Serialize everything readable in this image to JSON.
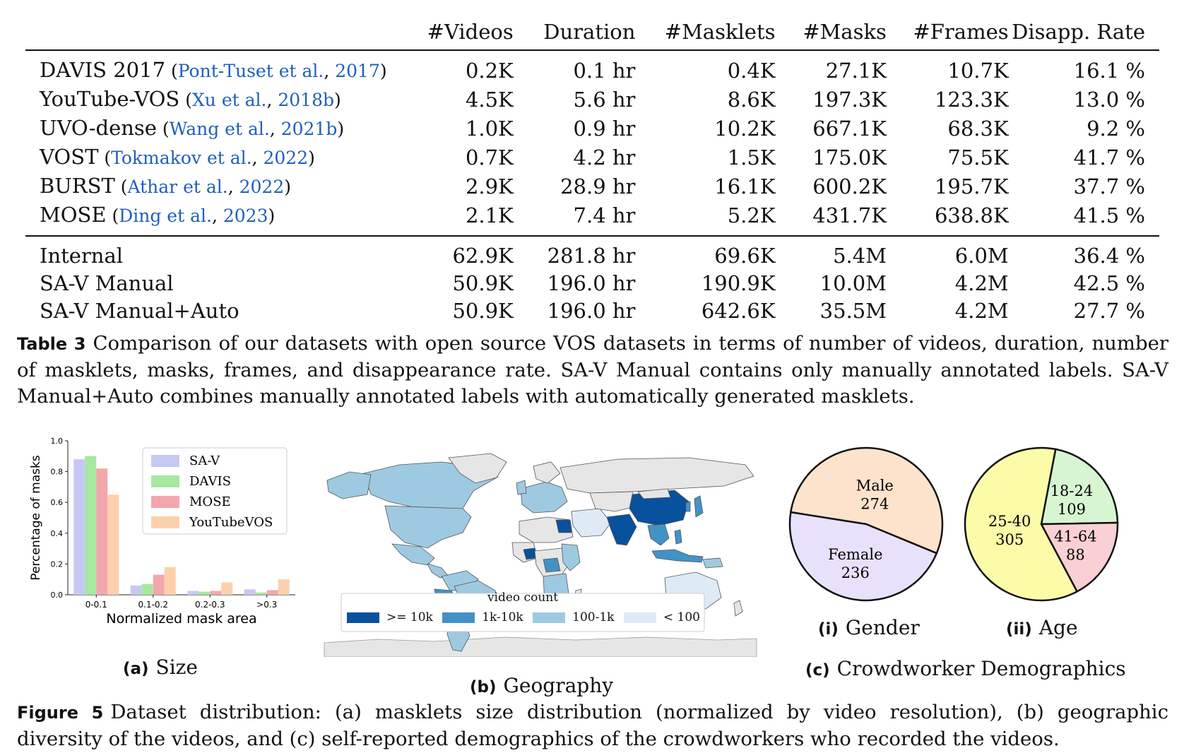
{
  "table3": {
    "headers": [
      "",
      "#Videos",
      "Duration",
      "#Masklets",
      "#Masks",
      "#Frames",
      "Disapp. Rate"
    ],
    "open_source_rows": [
      {
        "name": "DAVIS 2017",
        "cite_author": "Pont-Tuset et al.",
        "cite_year": "2017",
        "videos": "0.2K",
        "duration": "0.1 hr",
        "masklets": "0.4K",
        "masks": "27.1K",
        "frames": "10.7K",
        "disapp": "16.1 %"
      },
      {
        "name": "YouTube-VOS",
        "cite_author": "Xu et al.",
        "cite_year": "2018b",
        "videos": "4.5K",
        "duration": "5.6 hr",
        "masklets": "8.6K",
        "masks": "197.3K",
        "frames": "123.3K",
        "disapp": "13.0 %"
      },
      {
        "name": "UVO-dense",
        "cite_author": "Wang et al.",
        "cite_year": "2021b",
        "videos": "1.0K",
        "duration": "0.9 hr",
        "masklets": "10.2K",
        "masks": "667.1K",
        "frames": "68.3K",
        "disapp": "9.2 %"
      },
      {
        "name": "VOST",
        "cite_author": "Tokmakov et al.",
        "cite_year": "2022",
        "videos": "0.7K",
        "duration": "4.2 hr",
        "masklets": "1.5K",
        "masks": "175.0K",
        "frames": "75.5K",
        "disapp": "41.7 %"
      },
      {
        "name": "BURST",
        "cite_author": "Athar et al.",
        "cite_year": "2022",
        "videos": "2.9K",
        "duration": "28.9 hr",
        "masklets": "16.1K",
        "masks": "600.2K",
        "frames": "195.7K",
        "disapp": "37.7 %"
      },
      {
        "name": "MOSE",
        "cite_author": "Ding et al.",
        "cite_year": "2023",
        "videos": "2.1K",
        "duration": "7.4 hr",
        "masklets": "5.2K",
        "masks": "431.7K",
        "frames": "638.8K",
        "disapp": "41.5 %"
      }
    ],
    "ours_rows": [
      {
        "name": "Internal",
        "videos": "62.9K",
        "duration": "281.8 hr",
        "masklets": "69.6K",
        "masks": "5.4M",
        "frames": "6.0M",
        "disapp": "36.4 %"
      },
      {
        "name": "SA-V Manual",
        "videos": "50.9K",
        "duration": "196.0 hr",
        "masklets": "190.9K",
        "masks": "10.0M",
        "frames": "4.2M",
        "disapp": "42.5 %"
      },
      {
        "name": "SA-V Manual+Auto",
        "videos": "50.9K",
        "duration": "196.0 hr",
        "masklets": "642.6K",
        "masks": "35.5M",
        "frames": "4.2M",
        "disapp": "27.7 %"
      }
    ],
    "caption_label": "Table 3",
    "caption_text": "Comparison of our datasets with open source VOS datasets in terms of number of videos, duration, number of masklets, masks, frames, and disappearance rate. SA-V Manual contains only manually annotated labels. SA-V Manual+Auto combines manually annotated labels with automatically generated masklets."
  },
  "figure5": {
    "caption_label": "Figure 5",
    "caption_text": "Dataset distribution: (a) masklets size distribution (normalized by video resolution), (b) geographic diversity of the videos, and (c) self-reported demographics of the crowdworkers who recorded the videos.",
    "panel_a_label": "(a)",
    "panel_a_title": "Size",
    "panel_b_label": "(b)",
    "panel_b_title": "Geography",
    "panel_c_label": "(c)",
    "panel_c_title": "Crowdworker Demographics",
    "map_legend": {
      "title": "video count",
      "items": [
        {
          "label": ">= 10k",
          "color": "#08519c"
        },
        {
          "label": "1k-10k",
          "color": "#4292c6"
        },
        {
          "label": "100-1k",
          "color": "#9ecae1"
        },
        {
          "label": "< 100",
          "color": "#deebf7"
        }
      ],
      "no_data_color": "#e6e6e6"
    }
  },
  "chart_data": [
    {
      "type": "bar",
      "title": "",
      "xlabel": "Normalized mask area",
      "ylabel": "Percentage of masks",
      "ylim": [
        0,
        1.0
      ],
      "yticks": [
        "0.0",
        "0.2",
        "0.4",
        "0.6",
        "0.8",
        "1.0"
      ],
      "categories": [
        "0-0.1",
        "0.1-0.2",
        "0.2-0.3",
        ">0.3"
      ],
      "legend_position": "top-right",
      "series": [
        {
          "name": "SA-V",
          "color": "#c6c8f4",
          "values": [
            0.88,
            0.06,
            0.025,
            0.035
          ]
        },
        {
          "name": "DAVIS",
          "color": "#a6e8a0",
          "values": [
            0.9,
            0.07,
            0.02,
            0.015
          ]
        },
        {
          "name": "MOSE",
          "color": "#f4a6ad",
          "values": [
            0.82,
            0.13,
            0.025,
            0.03
          ]
        },
        {
          "name": "YouTubeVOS",
          "color": "#fdd0ad",
          "values": [
            0.65,
            0.18,
            0.08,
            0.1
          ]
        }
      ]
    },
    {
      "type": "pie",
      "subtitle_label": "(i)",
      "subtitle": "Gender",
      "slices": [
        {
          "label": "Male",
          "value": 274,
          "color": "#fde3cc"
        },
        {
          "label": "Female",
          "value": 236,
          "color": "#e8e1fb"
        }
      ]
    },
    {
      "type": "pie",
      "subtitle_label": "(ii)",
      "subtitle": "Age",
      "slices": [
        {
          "label": "18-24",
          "value": 109,
          "color": "#d8f5d2"
        },
        {
          "label": "41-64",
          "value": 88,
          "color": "#fbd0d4"
        },
        {
          "label": "25-40",
          "value": 305,
          "color": "#fbfba8"
        }
      ]
    }
  ]
}
